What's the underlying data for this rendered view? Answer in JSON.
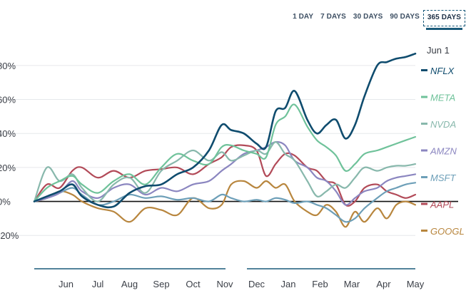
{
  "range_selector": {
    "options": [
      "1 DAY",
      "7 DAYS",
      "30 DAYS",
      "90 DAYS",
      "365 DAYS"
    ],
    "selected": "365 DAYS"
  },
  "chart_data": {
    "type": "line",
    "title": "",
    "xlabel": "",
    "ylabel": "",
    "current_date_label": "Jun 1",
    "ylim": [
      -35,
      90
    ],
    "y_ticks": [
      {
        "value": 80,
        "label": "80%"
      },
      {
        "value": 60,
        "label": "60%"
      },
      {
        "value": 40,
        "label": "40%"
      },
      {
        "value": 20,
        "label": "20%"
      },
      {
        "value": 0,
        "label": "0%"
      },
      {
        "value": -20,
        "label": "-20%"
      }
    ],
    "x_ticks": [
      "Jun",
      "Jul",
      "Aug",
      "Sep",
      "Oct",
      "Nov",
      "Dec",
      "Jan",
      "Feb",
      "Mar",
      "Apr",
      "May"
    ],
    "x_range": [
      0,
      12
    ],
    "x_tick_positions": [
      1,
      2,
      3,
      4,
      5,
      6,
      7,
      8,
      9,
      10,
      11,
      12
    ],
    "series": [
      {
        "name": "NFLX",
        "color": "#0f4c6e",
        "x": [
          0,
          0.4,
          0.8,
          1.2,
          1.5,
          2.0,
          2.5,
          3.0,
          3.5,
          4.0,
          4.5,
          5.0,
          5.5,
          5.9,
          6.2,
          6.6,
          7.0,
          7.3,
          7.6,
          7.9,
          8.2,
          8.6,
          8.9,
          9.2,
          9.5,
          9.8,
          10.1,
          10.4,
          10.8,
          11.1,
          11.4,
          11.7,
          12.0
        ],
        "y": [
          0,
          3,
          6,
          10,
          3,
          -2,
          -3,
          5,
          9,
          10,
          16,
          20,
          30,
          45,
          42,
          40,
          34,
          32,
          53,
          55,
          65,
          48,
          40,
          45,
          48,
          37,
          45,
          62,
          80,
          82,
          84,
          85,
          87
        ]
      },
      {
        "name": "META",
        "color": "#6fc29a",
        "x": [
          0,
          0.4,
          0.8,
          1.2,
          1.5,
          2.0,
          2.5,
          3.0,
          3.5,
          4.0,
          4.5,
          5.0,
          5.5,
          5.9,
          6.2,
          6.6,
          7.0,
          7.3,
          7.6,
          7.9,
          8.2,
          8.6,
          8.9,
          9.2,
          9.5,
          9.8,
          10.1,
          10.4,
          10.8,
          11.1,
          11.4,
          11.7,
          12.0
        ],
        "y": [
          0,
          8,
          12,
          15,
          10,
          5,
          12,
          16,
          10,
          20,
          28,
          24,
          22,
          32,
          33,
          30,
          28,
          26,
          45,
          50,
          57,
          44,
          36,
          32,
          27,
          18,
          22,
          28,
          30,
          32,
          34,
          36,
          38
        ]
      },
      {
        "name": "NVDA",
        "color": "#88b8ac",
        "x": [
          0,
          0.4,
          0.8,
          1.2,
          1.5,
          2.0,
          2.5,
          3.0,
          3.5,
          4.0,
          4.5,
          5.0,
          5.5,
          5.9,
          6.2,
          6.6,
          7.0,
          7.3,
          7.6,
          7.9,
          8.2,
          8.6,
          8.9,
          9.2,
          9.5,
          9.8,
          10.1,
          10.4,
          10.8,
          11.1,
          11.4,
          11.7,
          12.0
        ],
        "y": [
          0,
          20,
          12,
          16,
          8,
          0,
          10,
          14,
          5,
          18,
          24,
          30,
          24,
          29,
          24,
          27,
          30,
          28,
          35,
          28,
          24,
          12,
          3,
          6,
          10,
          8,
          14,
          20,
          18,
          20,
          21,
          21,
          22
        ]
      },
      {
        "name": "AMZN",
        "color": "#8b86c0",
        "x": [
          0,
          0.4,
          0.8,
          1.2,
          1.5,
          2.0,
          2.5,
          3.0,
          3.5,
          4.0,
          4.5,
          5.0,
          5.5,
          5.9,
          6.2,
          6.6,
          7.0,
          7.3,
          7.6,
          7.9,
          8.2,
          8.6,
          8.9,
          9.2,
          9.5,
          9.8,
          10.1,
          10.4,
          10.8,
          11.1,
          11.4,
          11.7,
          12.0
        ],
        "y": [
          0,
          2,
          5,
          12,
          6,
          2,
          8,
          10,
          4,
          8,
          6,
          10,
          12,
          18,
          22,
          28,
          30,
          32,
          35,
          33,
          24,
          20,
          14,
          12,
          6,
          -2,
          2,
          6,
          8,
          12,
          14,
          15,
          16
        ]
      },
      {
        "name": "MSFT",
        "color": "#6d9fb8",
        "x": [
          0,
          0.4,
          0.8,
          1.2,
          1.5,
          2.0,
          2.5,
          3.0,
          3.5,
          4.0,
          4.5,
          5.0,
          5.5,
          5.9,
          6.2,
          6.6,
          7.0,
          7.3,
          7.6,
          7.9,
          8.2,
          8.6,
          8.9,
          9.2,
          9.5,
          9.8,
          10.1,
          10.4,
          10.8,
          11.1,
          11.4,
          11.7,
          12.0
        ],
        "y": [
          0,
          2,
          5,
          8,
          4,
          -2,
          0,
          4,
          2,
          3,
          1,
          2,
          0,
          4,
          2,
          0,
          1,
          0,
          2,
          1,
          -1,
          0,
          -2,
          -4,
          -8,
          -12,
          -10,
          -4,
          2,
          6,
          8,
          10,
          11
        ]
      },
      {
        "name": "AAPL",
        "color": "#b24a58",
        "x": [
          0,
          0.4,
          0.8,
          1.2,
          1.5,
          2.0,
          2.5,
          3.0,
          3.5,
          4.0,
          4.5,
          5.0,
          5.5,
          5.9,
          6.2,
          6.6,
          7.0,
          7.3,
          7.6,
          7.9,
          8.2,
          8.6,
          8.9,
          9.2,
          9.5,
          9.8,
          10.1,
          10.4,
          10.8,
          11.1,
          11.4,
          11.7,
          12.0
        ],
        "y": [
          0,
          10,
          8,
          18,
          20,
          14,
          18,
          14,
          18,
          19,
          20,
          16,
          22,
          26,
          32,
          33,
          30,
          15,
          22,
          28,
          27,
          20,
          18,
          12,
          10,
          -2,
          0,
          8,
          10,
          6,
          4,
          2,
          4
        ]
      },
      {
        "name": "GOOGL",
        "color": "#b8863e",
        "x": [
          0,
          0.4,
          0.8,
          1.2,
          1.5,
          2.0,
          2.5,
          3.0,
          3.5,
          4.0,
          4.5,
          5.0,
          5.5,
          5.9,
          6.2,
          6.6,
          7.0,
          7.3,
          7.6,
          7.9,
          8.2,
          8.6,
          8.9,
          9.2,
          9.5,
          9.8,
          10.1,
          10.4,
          10.8,
          11.1,
          11.4,
          11.7,
          12.0
        ],
        "y": [
          0,
          2,
          6,
          4,
          0,
          -4,
          -6,
          -12,
          -4,
          -5,
          -8,
          2,
          -4,
          -2,
          10,
          12,
          8,
          12,
          8,
          10,
          0,
          -6,
          -8,
          -2,
          -6,
          -15,
          -6,
          -12,
          -4,
          -10,
          -2,
          0,
          -2
        ]
      }
    ]
  }
}
